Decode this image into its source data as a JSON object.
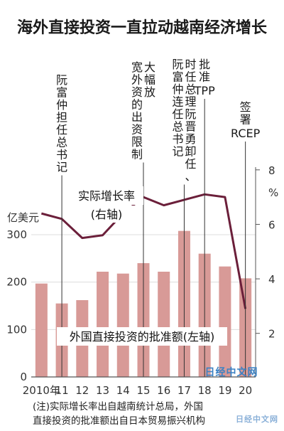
{
  "chart_data": {
    "type": "bar",
    "title": "海外直接投资一直拉动越南经济增长",
    "categories": [
      "2010年",
      "11",
      "12",
      "13",
      "14",
      "15",
      "16",
      "17",
      "18",
      "19",
      "20"
    ],
    "bar_series": {
      "name": "外国直接投资的批准额(左轴)",
      "unit": "亿美元",
      "values": [
        197,
        155,
        162,
        222,
        218,
        240,
        222,
        308,
        260,
        233,
        208
      ],
      "color": "#d89a97"
    },
    "line_series": {
      "name": "实际增长率",
      "axis_label": "(右轴)",
      "unit": "%",
      "values": [
        6.4,
        6.2,
        5.5,
        5.6,
        6.4,
        7.0,
        6.7,
        6.9,
        7.1,
        7.0,
        2.9
      ],
      "color": "#6b1f3a"
    },
    "y_left": {
      "ticks": [
        0,
        100,
        200,
        300
      ],
      "range": [
        0,
        330
      ]
    },
    "y_right": {
      "ticks": [
        2,
        4,
        6,
        8
      ],
      "range": [
        0.4,
        8.1
      ]
    },
    "annotations": [
      {
        "index": 1,
        "text": "阮富仲担任总书记"
      },
      {
        "index": 5,
        "text": "大幅放宽外资的出资限制"
      },
      {
        "index": 7,
        "text": "时任总理阮晋勇卸任、阮富仲连任总书记"
      },
      {
        "index": 8,
        "text": "批准TPP"
      },
      {
        "index": 10,
        "text": "签署RCEP"
      }
    ],
    "note_lines": [
      "(注)实际增长率出自越南统计总局，外国",
      "直接投资的批准额出自日本贸易振兴机构"
    ],
    "watermark": "日经中文网",
    "watermark2": "日经中文网"
  }
}
